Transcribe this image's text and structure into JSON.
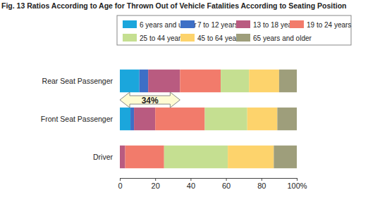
{
  "chart_data": {
    "type": "bar",
    "orientation": "horizontal",
    "stacked": true,
    "title": "Fig. 13  Ratios According to Age for Thrown Out of Vehicle Fatalities According to Seating Position",
    "categories": [
      "Rear Seat Passenger",
      "Front Seat Passenger",
      "Driver"
    ],
    "series": [
      {
        "name": "6 years and under",
        "color": "#1ba6dc",
        "values": [
          11,
          6,
          0
        ]
      },
      {
        "name": "7 to 12 years",
        "color": "#3d6fc6",
        "values": [
          5,
          2,
          0
        ]
      },
      {
        "name": "13 to 18 years",
        "color": "#b95b80",
        "values": [
          18,
          12,
          3
        ]
      },
      {
        "name": "19 to 24 years",
        "color": "#f27b6b",
        "values": [
          23,
          28,
          22
        ]
      },
      {
        "name": "25 to 44 years",
        "color": "#c5df91",
        "values": [
          16,
          24,
          36
        ]
      },
      {
        "name": "45 to 64 years",
        "color": "#fdd36c",
        "values": [
          17,
          17,
          26
        ]
      },
      {
        "name": "65 years and older",
        "color": "#9e9e7b",
        "values": [
          10,
          11,
          13
        ]
      }
    ],
    "xlim": [
      0,
      100
    ],
    "xticks": [
      0,
      20,
      40,
      60,
      80,
      {
        "value": 100,
        "label": "100%"
      }
    ],
    "annotations": [
      {
        "text": "34%"
      }
    ]
  }
}
